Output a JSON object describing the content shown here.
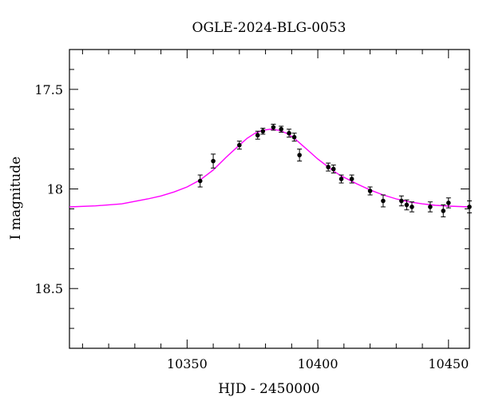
{
  "chart_data": {
    "type": "scatter",
    "title": "OGLE-2024-BLG-0053",
    "xlabel": "HJD - 2450000",
    "ylabel": "I magnitude",
    "xlim": [
      10305,
      10458
    ],
    "ylim": [
      18.8,
      17.3
    ],
    "y_inverted": true,
    "x_ticks": [
      10350,
      10400,
      10450
    ],
    "y_ticks": [
      17.5,
      18,
      18.5
    ],
    "x_tick_labels": [
      "10350",
      "10400",
      "10450"
    ],
    "y_tick_labels": [
      "17.5",
      "18",
      "18.5"
    ],
    "x_minor_step": 10,
    "y_minor_step": 0.1,
    "grid": false,
    "legend": "none",
    "colors": {
      "model": "#ff00ff",
      "points": "#000000",
      "axes": "#000000"
    },
    "series": [
      {
        "kind": "points_with_errorbars",
        "points": [
          {
            "x": 10355,
            "y": 17.96,
            "err": 0.03
          },
          {
            "x": 10360,
            "y": 17.86,
            "err": 0.035
          },
          {
            "x": 10370,
            "y": 17.78,
            "err": 0.02
          },
          {
            "x": 10377,
            "y": 17.73,
            "err": 0.02
          },
          {
            "x": 10379,
            "y": 17.71,
            "err": 0.015
          },
          {
            "x": 10383,
            "y": 17.69,
            "err": 0.015
          },
          {
            "x": 10386,
            "y": 17.7,
            "err": 0.015
          },
          {
            "x": 10389,
            "y": 17.72,
            "err": 0.02
          },
          {
            "x": 10391,
            "y": 17.74,
            "err": 0.02
          },
          {
            "x": 10393,
            "y": 17.83,
            "err": 0.03
          },
          {
            "x": 10404,
            "y": 17.89,
            "err": 0.02
          },
          {
            "x": 10406,
            "y": 17.9,
            "err": 0.02
          },
          {
            "x": 10409,
            "y": 17.95,
            "err": 0.02
          },
          {
            "x": 10413,
            "y": 17.95,
            "err": 0.02
          },
          {
            "x": 10420,
            "y": 18.01,
            "err": 0.02
          },
          {
            "x": 10425,
            "y": 18.06,
            "err": 0.03
          },
          {
            "x": 10432,
            "y": 18.06,
            "err": 0.025
          },
          {
            "x": 10434,
            "y": 18.08,
            "err": 0.025
          },
          {
            "x": 10436,
            "y": 18.09,
            "err": 0.025
          },
          {
            "x": 10443,
            "y": 18.09,
            "err": 0.025
          },
          {
            "x": 10448,
            "y": 18.11,
            "err": 0.03
          },
          {
            "x": 10450,
            "y": 18.07,
            "err": 0.025
          },
          {
            "x": 10458,
            "y": 18.09,
            "err": 0.03
          }
        ]
      },
      {
        "kind": "model_curve",
        "x": [
          10305,
          10315,
          10325,
          10335,
          10340,
          10345,
          10350,
          10355,
          10360,
          10365,
          10370,
          10373,
          10376,
          10379,
          10382,
          10385,
          10388,
          10391,
          10394,
          10397,
          10400,
          10403,
          10406,
          10409,
          10412,
          10415,
          10420,
          10425,
          10430,
          10435,
          10440,
          10445,
          10450,
          10458
        ],
        "y": [
          18.09,
          18.085,
          18.075,
          18.05,
          18.035,
          18.015,
          17.99,
          17.955,
          17.905,
          17.84,
          17.78,
          17.745,
          17.72,
          17.705,
          17.7,
          17.705,
          17.72,
          17.745,
          17.78,
          17.815,
          17.85,
          17.88,
          17.91,
          17.935,
          17.955,
          17.975,
          18.005,
          18.03,
          18.05,
          18.065,
          18.075,
          18.082,
          18.086,
          18.09
        ]
      }
    ]
  }
}
